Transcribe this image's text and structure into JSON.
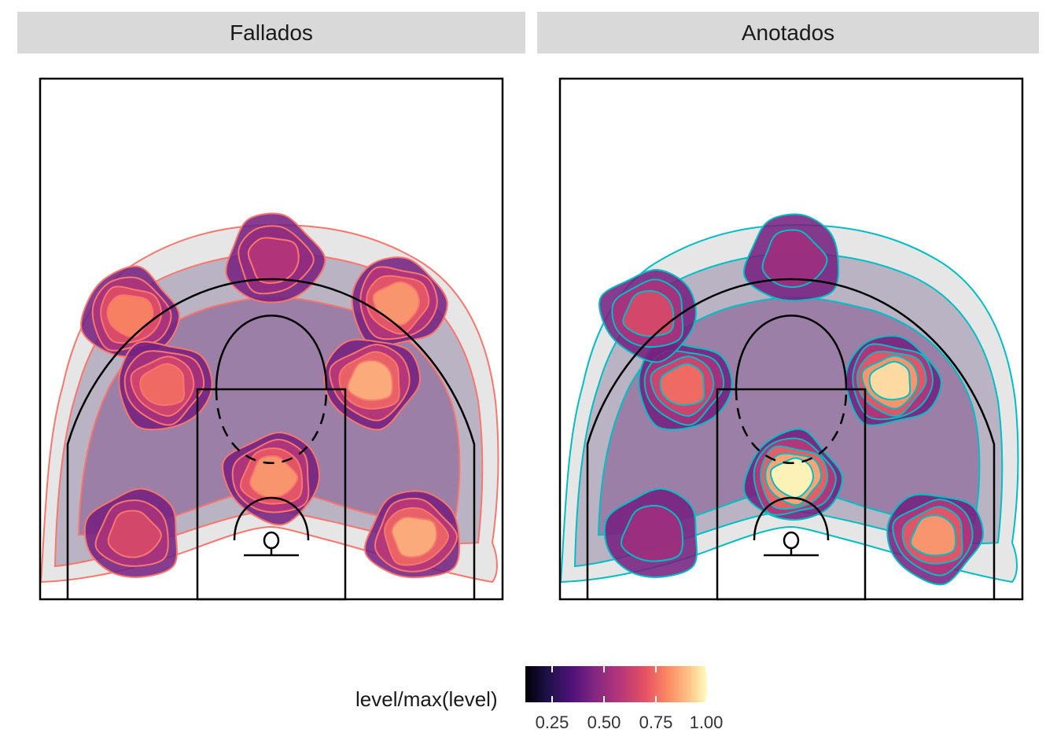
{
  "facets": [
    {
      "label": "Fallados",
      "outline_color": "#f8766d"
    },
    {
      "label": "Anotados",
      "outline_color": "#00bfc4"
    }
  ],
  "legend": {
    "title": "level/max(level)",
    "ticks": [
      "0.25",
      "0.50",
      "0.75",
      "1.00"
    ],
    "colormap": "magma"
  },
  "chart_data": {
    "type": "density2d",
    "title": "",
    "xlabel": "",
    "ylabel": "",
    "fill_scale": {
      "name": "level/max(level)",
      "range": [
        0.15,
        1.0
      ],
      "breaks": [
        0.25,
        0.5,
        0.75,
        1.0
      ]
    },
    "panels": [
      {
        "facet": "Fallados",
        "peaks": [
          {
            "location": "left wing",
            "level": 0.75
          },
          {
            "location": "right wing",
            "level": 0.8
          },
          {
            "location": "left elbow",
            "level": 0.7
          },
          {
            "location": "right elbow",
            "level": 0.85
          },
          {
            "location": "paint",
            "level": 0.8
          },
          {
            "location": "left corner",
            "level": 0.6
          },
          {
            "location": "right corner",
            "level": 0.85
          },
          {
            "location": "top of key",
            "level": 0.5
          }
        ]
      },
      {
        "facet": "Anotados",
        "peaks": [
          {
            "location": "paint",
            "level": 1.0
          },
          {
            "location": "right elbow",
            "level": 0.95
          },
          {
            "location": "left elbow",
            "level": 0.7
          },
          {
            "location": "right corner",
            "level": 0.8
          },
          {
            "location": "left wing",
            "level": 0.6
          },
          {
            "location": "left corner",
            "level": 0.45
          },
          {
            "location": "top of key",
            "level": 0.45
          }
        ]
      }
    ]
  }
}
